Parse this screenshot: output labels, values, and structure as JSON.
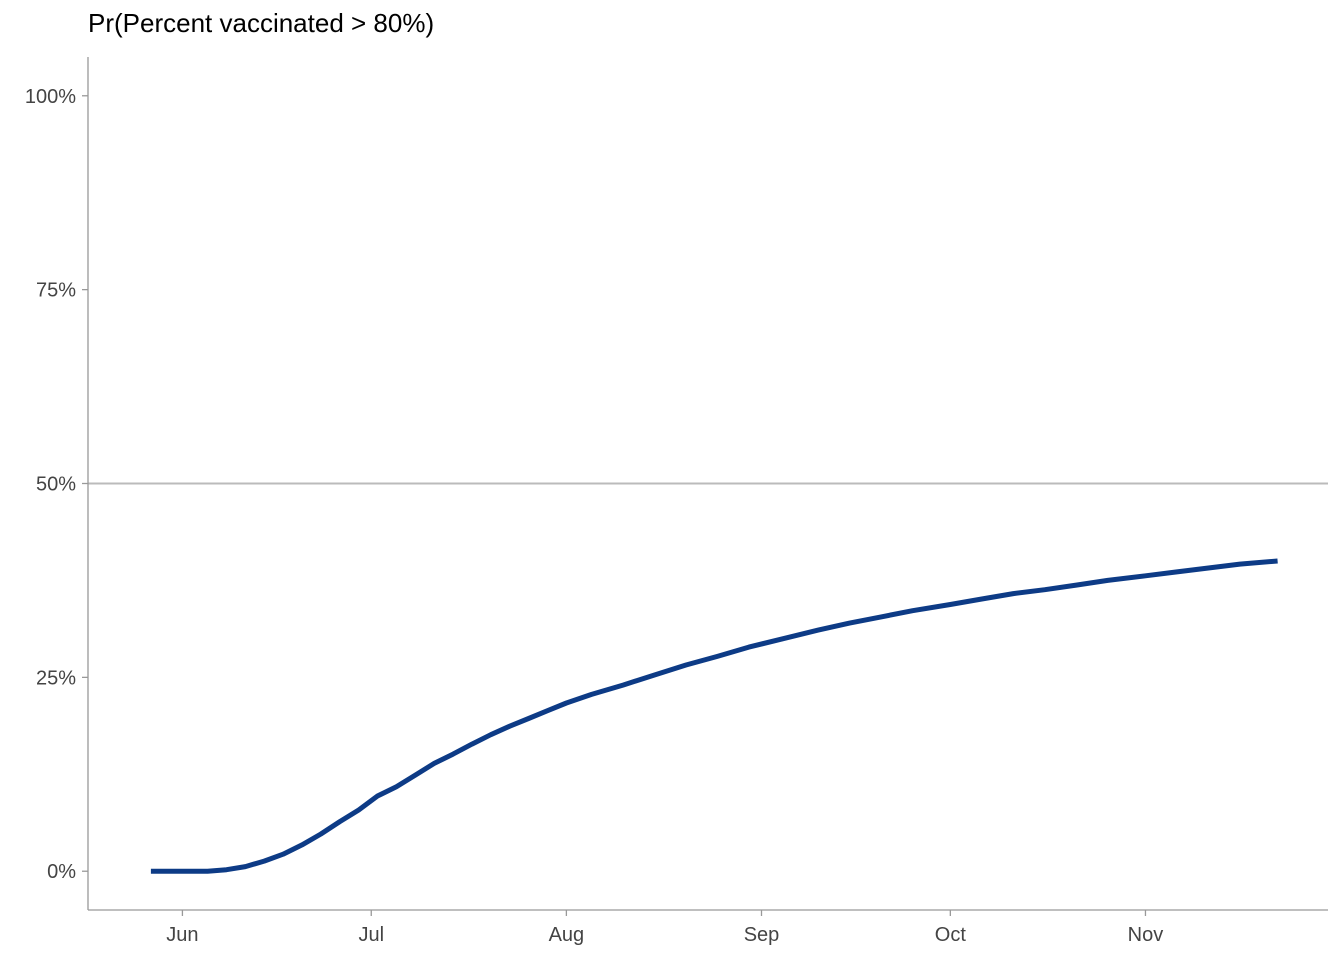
{
  "chart_data": {
    "type": "line",
    "title": "Pr(Percent vaccinated > 80%)",
    "xlabel": "",
    "ylabel": "",
    "x_tick_labels": [
      "Jun",
      "Jul",
      "Aug",
      "Sep",
      "Oct",
      "Nov"
    ],
    "x_tick_dates": [
      "2021-06-01",
      "2021-07-01",
      "2021-08-01",
      "2021-09-01",
      "2021-10-01",
      "2021-11-01"
    ],
    "xlim": [
      "2021-05-17",
      "2021-11-30"
    ],
    "y_tick_labels": [
      "0%",
      "25%",
      "50%",
      "75%",
      "100%"
    ],
    "y_tick_values": [
      0,
      0.25,
      0.5,
      0.75,
      1.0
    ],
    "ylim": [
      -0.05,
      1.05
    ],
    "reference_line": {
      "y": 0.5,
      "color": "#bbbbbb"
    },
    "grid": false,
    "series": [
      {
        "color": "#0d3b86",
        "x": [
          "2021-05-27",
          "2021-06-01",
          "2021-06-05",
          "2021-06-08",
          "2021-06-11",
          "2021-06-14",
          "2021-06-17",
          "2021-06-20",
          "2021-06-23",
          "2021-06-26",
          "2021-06-29",
          "2021-07-02",
          "2021-07-05",
          "2021-07-08",
          "2021-07-11",
          "2021-07-14",
          "2021-07-17",
          "2021-07-20",
          "2021-07-23",
          "2021-07-26",
          "2021-07-29",
          "2021-08-01",
          "2021-08-05",
          "2021-08-10",
          "2021-08-15",
          "2021-08-20",
          "2021-08-25",
          "2021-08-30",
          "2021-09-05",
          "2021-09-10",
          "2021-09-15",
          "2021-09-20",
          "2021-09-25",
          "2021-10-01",
          "2021-10-06",
          "2021-10-11",
          "2021-10-16",
          "2021-10-21",
          "2021-10-26",
          "2021-11-01",
          "2021-11-06",
          "2021-11-11",
          "2021-11-16",
          "2021-11-22"
        ],
        "y": [
          0.0,
          0.0,
          0.0,
          0.002,
          0.006,
          0.013,
          0.022,
          0.034,
          0.048,
          0.064,
          0.079,
          0.097,
          0.109,
          0.124,
          0.139,
          0.151,
          0.164,
          0.176,
          0.187,
          0.197,
          0.207,
          0.217,
          0.228,
          0.24,
          0.253,
          0.266,
          0.277,
          0.289,
          0.301,
          0.311,
          0.32,
          0.328,
          0.336,
          0.344,
          0.351,
          0.358,
          0.363,
          0.369,
          0.375,
          0.381,
          0.386,
          0.391,
          0.396,
          0.4
        ]
      }
    ]
  }
}
